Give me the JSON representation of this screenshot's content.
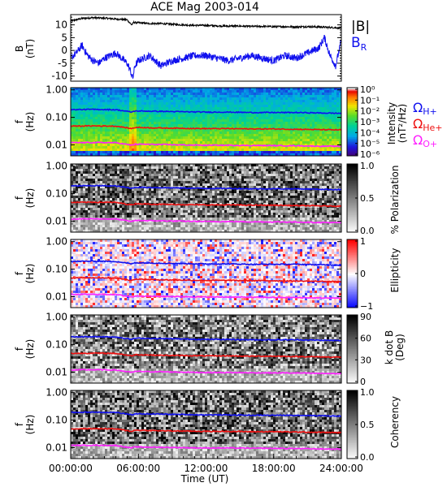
{
  "title": "ACE Mag 2003-014",
  "colors": {
    "B_mag": "#000000",
    "B_R": "#1010ee",
    "omega_H": "#1010ee",
    "omega_He": "#ee1010",
    "omega_O": "#ff20ff"
  },
  "chart_data": [
    {
      "type": "line",
      "panel": "magnetic-field",
      "ylabel": [
        "B",
        "(nT)"
      ],
      "ylim": [
        -12,
        14
      ],
      "yticks": [
        "10",
        "5",
        "0",
        "-5",
        "-10"
      ],
      "ytick_values": [
        10,
        5,
        0,
        -5,
        -10
      ],
      "xlim": [
        0,
        24
      ],
      "series": [
        {
          "name": "|B|",
          "color": "#000000",
          "x": [
            0,
            1,
            2,
            3,
            4,
            5,
            5.4,
            5.6,
            6,
            7,
            8,
            9,
            10,
            11,
            12,
            13,
            14,
            15,
            16,
            17,
            18,
            19,
            20,
            21,
            22,
            23,
            24
          ],
          "y": [
            11.5,
            12.5,
            12.8,
            12.6,
            12.3,
            12.0,
            10.0,
            11.0,
            10.8,
            10.5,
            10.5,
            10.2,
            10.0,
            9.8,
            9.8,
            9.6,
            9.5,
            9.5,
            9.4,
            9.4,
            9.3,
            9.3,
            9.2,
            9.3,
            9.2,
            9.0,
            8.8
          ]
        },
        {
          "name": "B_R",
          "color": "#1010ee",
          "x": [
            0,
            0.5,
            1,
            1.5,
            2,
            2.5,
            3,
            3.5,
            4,
            4.5,
            5,
            5.3,
            5.5,
            5.7,
            6,
            6.5,
            7,
            7.5,
            8,
            9,
            10,
            11,
            12,
            13,
            14,
            15,
            16,
            17,
            18,
            19,
            20,
            21,
            22,
            22.5,
            23,
            23.5,
            24
          ],
          "y": [
            -3,
            -1,
            2,
            -2,
            -4,
            -5,
            -3,
            -2,
            -1,
            -3,
            -5,
            -8,
            -11,
            -6,
            -4,
            -3,
            -2,
            -4,
            -6,
            -4,
            -3,
            -2,
            -2,
            -3,
            -4,
            -3,
            -2,
            -3,
            -4,
            -2,
            -3,
            -1,
            1,
            5,
            -2,
            -6,
            4
          ]
        }
      ],
      "right_labels": [
        "|B|",
        "B_R"
      ]
    },
    {
      "type": "heatmap",
      "panel": "intensity",
      "ylabel": [
        "f",
        "(Hz)"
      ],
      "yticks": [
        "1.00",
        "0.10",
        "0.01"
      ],
      "ytick_values": [
        1.0,
        0.1,
        0.01
      ],
      "ylim_log": [
        0.004,
        1.2
      ],
      "colorbar": {
        "label": [
          "Intensity",
          "(nT²/Hz)"
        ],
        "ticks": [
          "10⁰",
          "10⁻¹",
          "10⁻²",
          "10⁻³",
          "10⁻⁴",
          "10⁻⁵",
          "10⁻⁶"
        ],
        "range_log": [
          -6.5,
          0.5
        ],
        "palette": "rainbow"
      },
      "right_labels": [
        "Ω_H+",
        "Ω_He+",
        "Ω_O+"
      ]
    },
    {
      "type": "heatmap",
      "panel": "polarization",
      "ylabel": [
        "f",
        "(Hz)"
      ],
      "yticks": [
        "1.00",
        "0.10",
        "0.01"
      ],
      "ytick_values": [
        1.0,
        0.1,
        0.01
      ],
      "colorbar": {
        "label": [
          "% Polarization"
        ],
        "ticks": [
          "1.0",
          "0.5",
          "0.0"
        ],
        "palette": "gray"
      }
    },
    {
      "type": "heatmap",
      "panel": "ellipticity",
      "ylabel": [
        "f",
        "(Hz)"
      ],
      "yticks": [
        "1.00",
        "0.10",
        "0.01"
      ],
      "ytick_values": [
        1.0,
        0.1,
        0.01
      ],
      "colorbar": {
        "label": [
          "Ellipticity"
        ],
        "ticks": [
          "1",
          "0",
          "−1"
        ],
        "palette": "redblue"
      }
    },
    {
      "type": "heatmap",
      "panel": "kdotb",
      "ylabel": [
        "f",
        "(Hz)"
      ],
      "yticks": [
        "1.00",
        "0.10",
        "0.01"
      ],
      "ytick_values": [
        1.0,
        0.1,
        0.01
      ],
      "colorbar": {
        "label": [
          "k dot B",
          "(Deg)"
        ],
        "ticks": [
          "90",
          "60",
          "30",
          "0"
        ],
        "palette": "gray"
      }
    },
    {
      "type": "heatmap",
      "panel": "coherency",
      "ylabel": [
        "f",
        "(Hz)"
      ],
      "yticks": [
        "1.00",
        "0.10",
        "0.01"
      ],
      "ytick_values": [
        1.0,
        0.1,
        0.01
      ],
      "colorbar": {
        "label": [
          "Coherency"
        ],
        "ticks": [
          "1.0",
          "0.5",
          "0.0"
        ],
        "palette": "gray"
      }
    }
  ],
  "gyrofrequency_lines": {
    "x": [
      0,
      2,
      4,
      5.4,
      5.7,
      6,
      8,
      10,
      12,
      14,
      16,
      18,
      20,
      22,
      24
    ],
    "omega_H": [
      0.19,
      0.195,
      0.19,
      0.155,
      0.17,
      0.17,
      0.165,
      0.16,
      0.155,
      0.155,
      0.15,
      0.15,
      0.15,
      0.145,
      0.14
    ],
    "omega_He": [
      0.048,
      0.049,
      0.048,
      0.039,
      0.043,
      0.043,
      0.041,
      0.04,
      0.039,
      0.039,
      0.038,
      0.038,
      0.037,
      0.036,
      0.035
    ],
    "omega_O": [
      0.012,
      0.0122,
      0.012,
      0.0097,
      0.0106,
      0.0106,
      0.0103,
      0.01,
      0.0097,
      0.0097,
      0.0095,
      0.0094,
      0.0093,
      0.009,
      0.0088
    ]
  },
  "x_axis": {
    "label": "Time (UT)",
    "ticks": [
      "00:00:00",
      "06:00:00",
      "12:00:00",
      "18:00:00",
      "24:00:00"
    ],
    "tick_hours": [
      0,
      6,
      12,
      18,
      24
    ]
  }
}
